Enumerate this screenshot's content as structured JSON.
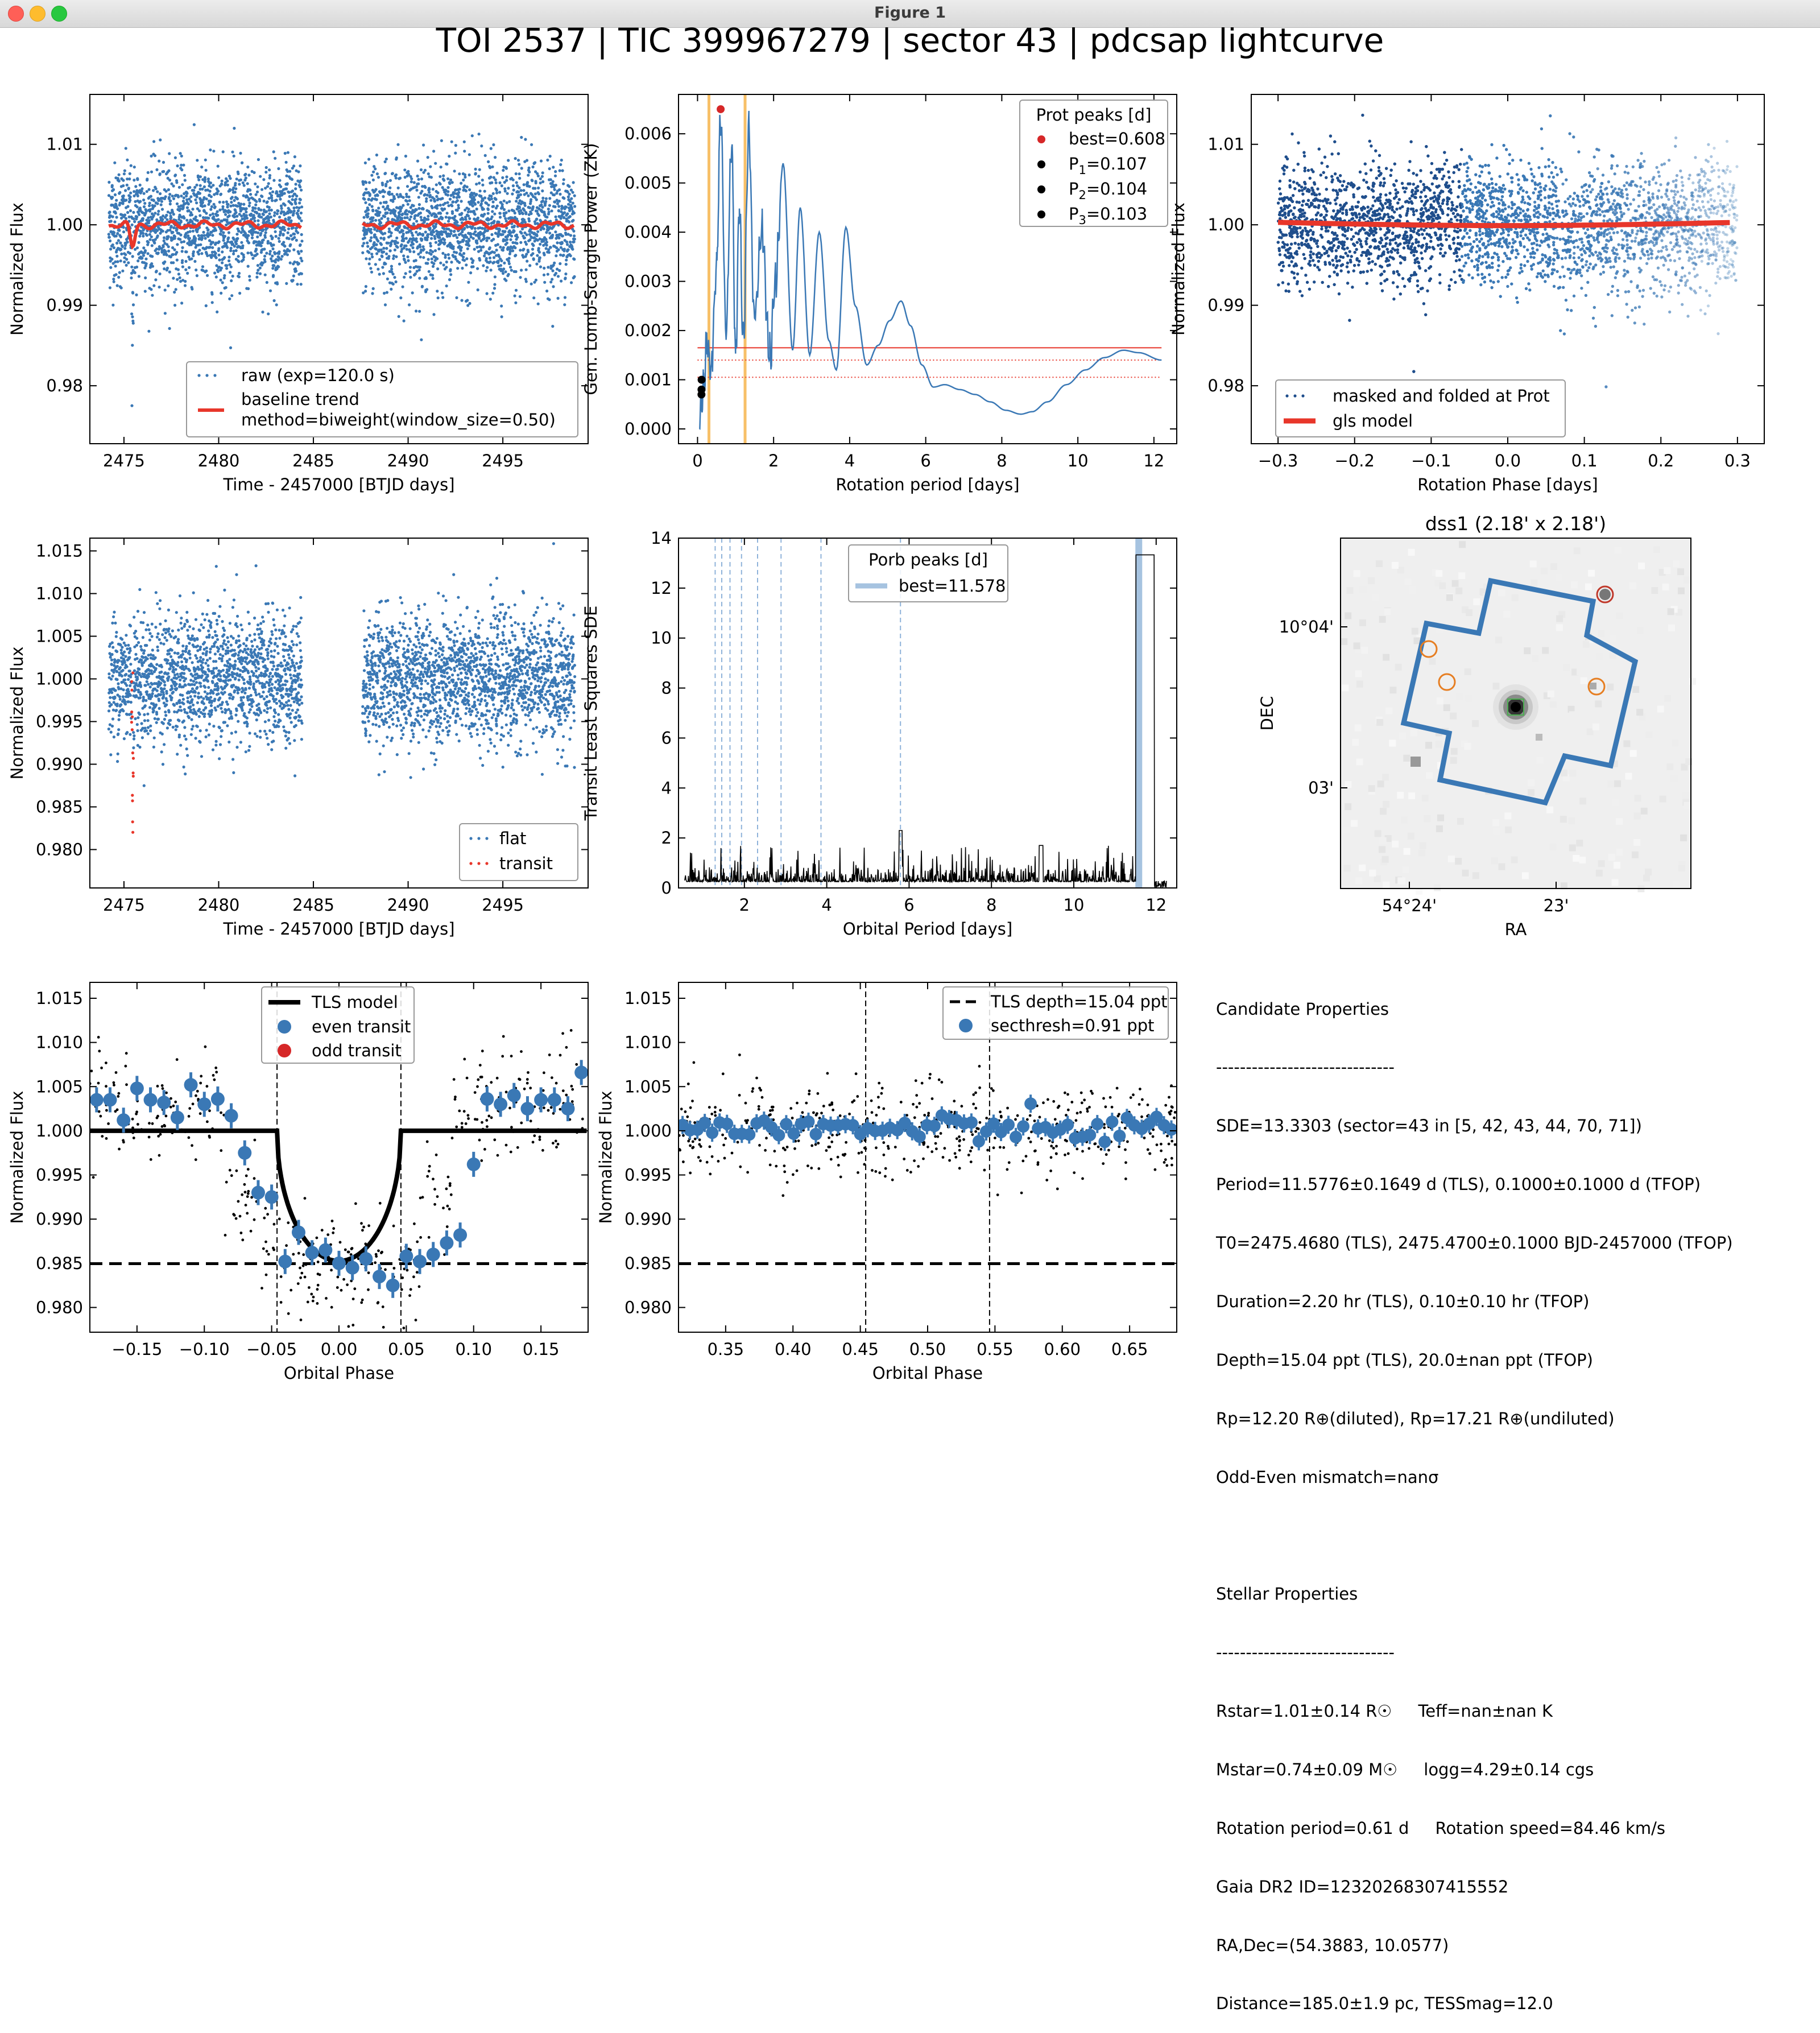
{
  "window": {
    "title": "Figure 1",
    "colors": {
      "close": "#ff5f57",
      "minimize": "#febc2e",
      "zoom": "#28c840"
    }
  },
  "figure_title": "TOI 2537 | TIC 399967279 | sector 43 | pdcsap lightcurve",
  "chart_data": [
    {
      "id": "raw",
      "type": "scatter",
      "xlabel": "Time - 2457000 [BTJD days]",
      "ylabel": "Normalized Flux",
      "xlim": [
        2473.2,
        2499.5
      ],
      "ylim": [
        0.9728,
        1.0162
      ],
      "xticks": [
        2475,
        2480,
        2485,
        2490,
        2495
      ],
      "xtick_labels": [
        "2475",
        "2480",
        "2485",
        "2490",
        "2495"
      ],
      "yticks": [
        0.98,
        0.99,
        1.0,
        1.01
      ],
      "ytick_labels": [
        "0.98",
        "0.99",
        "1.00",
        "1.01"
      ],
      "segments": [
        [
          2474.2,
          2484.4
        ],
        [
          2487.6,
          2498.8
        ]
      ],
      "scatter_sigma": 0.0038,
      "dip": {
        "center": 2475.45,
        "halfwidth": 0.05,
        "depth": 0.015
      },
      "series": [
        {
          "name": "raw (exp=120.0 s)",
          "color": "#3a78b5",
          "style": "points"
        },
        {
          "name": "baseline trend\nmethod=biweight(window_size=0.50)",
          "color": "#e8362a",
          "style": "line"
        }
      ],
      "legend": "lower-right"
    },
    {
      "id": "gls",
      "type": "line",
      "xlabel": "Rotation period [days]",
      "ylabel": "Gen. Lomb-Scargle Power (ZK)",
      "xlim": [
        -0.5,
        12.6
      ],
      "ylim": [
        -0.0003,
        0.0068
      ],
      "xticks": [
        0,
        2,
        4,
        6,
        8,
        10,
        12
      ],
      "xtick_labels": [
        "0",
        "2",
        "4",
        "6",
        "8",
        "10",
        "12"
      ],
      "yticks": [
        0,
        0.001,
        0.002,
        0.003,
        0.004,
        0.005,
        0.006
      ],
      "ytick_labels": [
        "0.000",
        "0.001",
        "0.002",
        "0.003",
        "0.004",
        "0.005",
        "0.006"
      ],
      "curve": {
        "x": [
          0.05,
          0.15,
          0.25,
          0.35,
          0.5,
          0.608,
          0.75,
          0.9,
          1.0,
          1.1,
          1.2,
          1.35,
          1.5,
          1.7,
          1.9,
          2.05,
          2.25,
          2.5,
          2.7,
          2.95,
          3.2,
          3.45,
          3.65,
          3.9,
          4.15,
          4.45,
          4.75,
          5.05,
          5.35,
          5.6,
          5.9,
          6.2,
          6.5,
          6.9,
          7.3,
          7.7,
          8.1,
          8.5,
          8.8,
          9.2,
          9.7,
          10.2,
          10.7,
          11.2,
          11.6,
          12.2
        ],
        "y": [
          0.0002,
          0.0008,
          0.0018,
          0.0012,
          0.0033,
          0.0064,
          0.002,
          0.0058,
          0.0015,
          0.0045,
          0.0018,
          0.006,
          0.0022,
          0.004,
          0.0014,
          0.003,
          0.0054,
          0.0016,
          0.0045,
          0.0015,
          0.004,
          0.0018,
          0.0012,
          0.0041,
          0.0025,
          0.0013,
          0.0017,
          0.0022,
          0.0026,
          0.0021,
          0.0013,
          0.00085,
          0.0009,
          0.0008,
          0.0007,
          0.00055,
          0.00038,
          0.0003,
          0.00035,
          0.00055,
          0.0009,
          0.0012,
          0.00145,
          0.0016,
          0.00155,
          0.0014
        ]
      },
      "fap_lines": [
        0.00165,
        0.0014,
        0.00105
      ],
      "shaded_periods": [
        0.3,
        1.25
      ],
      "peaks": [
        {
          "label": "best=0.608",
          "x": 0.608,
          "y": 0.0065,
          "color": "#d62728"
        },
        {
          "label": "P",
          "sub": "1",
          "val": "=0.107",
          "x": 0.107,
          "y": 0.001,
          "color": "#000000"
        },
        {
          "label": "P",
          "sub": "2",
          "val": "=0.104",
          "x": 0.104,
          "y": 0.0008,
          "color": "#000000"
        },
        {
          "label": "P",
          "sub": "3",
          "val": "=0.103",
          "x": 0.103,
          "y": 0.0007,
          "color": "#000000"
        }
      ],
      "legend_title": "Prot peaks [d]",
      "legend": "top-right"
    },
    {
      "id": "folded_rot",
      "type": "scatter",
      "xlabel": "Rotation Phase [days]",
      "ylabel": "Normalized Flux",
      "xlim": [
        -0.335,
        0.335
      ],
      "ylim": [
        0.9728,
        1.0162
      ],
      "xticks": [
        -0.3,
        -0.2,
        -0.1,
        0.0,
        0.1,
        0.2,
        0.3
      ],
      "xtick_labels": [
        "−0.3",
        "−0.2",
        "−0.1",
        "0.0",
        "0.1",
        "0.2",
        "0.3"
      ],
      "yticks": [
        0.98,
        0.99,
        1.0,
        1.01
      ],
      "ytick_labels": [
        "0.98",
        "0.99",
        "1.00",
        "1.01"
      ],
      "series": [
        {
          "name": "masked and folded at Prot",
          "color": "#1f4e8c",
          "style": "points"
        },
        {
          "name": "gls model",
          "color": "#e8362a",
          "style": "line"
        }
      ],
      "legend": "lower-left"
    },
    {
      "id": "flat",
      "type": "scatter",
      "xlabel": "Time - 2457000 [BTJD days]",
      "ylabel": "Normalized Flux",
      "xlim": [
        2473.2,
        2499.5
      ],
      "ylim": [
        0.9755,
        1.0165
      ],
      "xticks": [
        2475,
        2480,
        2485,
        2490,
        2495
      ],
      "xtick_labels": [
        "2475",
        "2480",
        "2485",
        "2490",
        "2495"
      ],
      "yticks": [
        0.98,
        0.985,
        0.99,
        0.995,
        1.0,
        1.005,
        1.01,
        1.015
      ],
      "ytick_labels": [
        "0.980",
        "0.985",
        "0.990",
        "0.995",
        "1.000",
        "1.005",
        "1.010",
        "1.015"
      ],
      "series": [
        {
          "name": "flat",
          "color": "#3a78b5",
          "style": "points"
        },
        {
          "name": "transit",
          "color": "#e8362a",
          "style": "points"
        }
      ],
      "legend": "lower-right"
    },
    {
      "id": "tls",
      "type": "line",
      "xlabel": "Orbital Period [days]",
      "ylabel": "Transit Least Squares SDE",
      "xlim": [
        0.4,
        12.5
      ],
      "ylim": [
        0,
        14
      ],
      "xticks": [
        2,
        4,
        6,
        8,
        10,
        12
      ],
      "xtick_labels": [
        "2",
        "4",
        "6",
        "8",
        "10",
        "12"
      ],
      "yticks": [
        0,
        2,
        4,
        6,
        8,
        10,
        12,
        14
      ],
      "ytick_labels": [
        "0",
        "2",
        "4",
        "6",
        "8",
        "10",
        "12",
        "14"
      ],
      "best_period": 11.578,
      "best_sde": 13.33,
      "harmonics": [
        1.29,
        1.45,
        1.65,
        1.93,
        2.32,
        2.89,
        3.86,
        5.79
      ],
      "legend_title": "Porb peaks [d]",
      "series": [
        {
          "name": "best=11.578",
          "color": "#a6c3e0"
        }
      ],
      "legend": "top-center"
    },
    {
      "id": "dss",
      "type": "image",
      "title": "dss1 (2.18' x 2.18')",
      "xlabel": "RA",
      "ylabel": "DEC",
      "xtick_labels": [
        "54°24'",
        "23'"
      ],
      "ytick_labels": [
        "10°04'",
        "03'"
      ]
    },
    {
      "id": "folded_transit",
      "type": "scatter",
      "xlabel": "Orbital Phase",
      "ylabel": "Normalized Flux",
      "xlim": [
        -0.185,
        0.185
      ],
      "ylim": [
        0.9772,
        1.0168
      ],
      "xticks": [
        -0.15,
        -0.1,
        -0.05,
        0.0,
        0.05,
        0.1,
        0.15
      ],
      "xtick_labels": [
        "−0.15",
        "−0.10",
        "−0.05",
        "0.00",
        "0.05",
        "0.10",
        "0.15"
      ],
      "yticks": [
        0.98,
        0.985,
        0.99,
        0.995,
        1.0,
        1.005,
        1.01,
        1.015
      ],
      "ytick_labels": [
        "0.980",
        "0.985",
        "0.990",
        "0.995",
        "1.000",
        "1.005",
        "1.010",
        "1.015"
      ],
      "binned": {
        "x": [
          -0.18,
          -0.17,
          -0.16,
          -0.15,
          -0.14,
          -0.13,
          -0.12,
          -0.11,
          -0.1,
          -0.09,
          -0.08,
          -0.07,
          -0.06,
          -0.05,
          -0.04,
          -0.03,
          -0.02,
          -0.01,
          0.0,
          0.01,
          0.02,
          0.03,
          0.04,
          0.05,
          0.06,
          0.07,
          0.08,
          0.09,
          0.1,
          0.11,
          0.12,
          0.13,
          0.14,
          0.15,
          0.16,
          0.17,
          0.18
        ],
        "y": [
          1.0035,
          1.0035,
          1.0012,
          1.0048,
          1.0035,
          1.0032,
          1.0015,
          1.0052,
          1.003,
          1.0036,
          1.0017,
          0.9975,
          0.993,
          0.9925,
          0.9852,
          0.9885,
          0.9862,
          0.9865,
          0.985,
          0.9845,
          0.9855,
          0.9835,
          0.9825,
          0.9858,
          0.9852,
          0.986,
          0.9873,
          0.9882,
          0.9962,
          1.0036,
          1.003,
          1.004,
          1.0025,
          1.0035,
          1.0035,
          1.0025,
          1.0066
        ]
      },
      "model": {
        "depth": 0.01504,
        "t14": 0.046
      },
      "depth_line": 0.98496,
      "vlines": [
        -0.046,
        0.046
      ],
      "series": [
        {
          "name": "TLS model",
          "color": "#000000",
          "style": "line"
        },
        {
          "name": "even transit",
          "color": "#3a78b5",
          "style": "marker"
        },
        {
          "name": "odd transit",
          "color": "#d62728",
          "style": "marker"
        }
      ],
      "legend": "top-center"
    },
    {
      "id": "secondary",
      "type": "scatter",
      "xlabel": "Orbital Phase",
      "ylabel": "Normalized Flux",
      "xlim": [
        0.315,
        0.685
      ],
      "ylim": [
        0.9772,
        1.0168
      ],
      "xticks": [
        0.35,
        0.4,
        0.45,
        0.5,
        0.55,
        0.6,
        0.65
      ],
      "xtick_labels": [
        "0.35",
        "0.40",
        "0.45",
        "0.50",
        "0.55",
        "0.60",
        "0.65"
      ],
      "yticks": [
        0.98,
        0.985,
        0.99,
        0.995,
        1.0,
        1.005,
        1.01,
        1.015
      ],
      "ytick_labels": [
        "0.980",
        "0.985",
        "0.990",
        "0.995",
        "1.000",
        "1.005",
        "1.010",
        "1.015"
      ],
      "depth_line": 0.98496,
      "vlines": [
        0.454,
        0.546
      ],
      "series": [
        {
          "name": "TLS depth=15.04 ppt",
          "color": "#000000",
          "style": "dashed"
        },
        {
          "name": "secthresh=0.91 ppt",
          "color": "#3a78b5",
          "style": "marker"
        }
      ],
      "legend": "top-right"
    }
  ],
  "candidate": {
    "heading": "Candidate Properties",
    "rule": "------------------------------",
    "lines": [
      "SDE=13.3303 (sector=43 in [5, 42, 43, 44, 70, 71])",
      "Period=11.5776±0.1649 d (TLS), 0.1000±0.1000 d (TFOP)",
      "T0=2475.4680 (TLS), 2475.4700±0.1000 BJD-2457000 (TFOP)",
      "Duration=2.20 hr (TLS), 0.10±0.10 hr (TFOP)",
      "Depth=15.04 ppt (TLS), 20.0±nan ppt (TFOP)",
      "Rp=12.20 R⊕(diluted), Rp=17.21 R⊕(undiluted)",
      "Odd-Even mismatch=nanσ"
    ]
  },
  "stellar": {
    "heading": "Stellar Properties",
    "rule": "------------------------------",
    "lines": [
      "Rstar=1.01±0.14 R☉     Teff=nan±nan K",
      "Mstar=0.74±0.09 M☉     logg=4.29±0.14 cgs",
      "Rotation period=0.61 d     Rotation speed=84.46 km/s",
      "Gaia DR2 ID=1232026830741555​2",
      "RA,Dec=(54.3883, 10.0577)",
      "Distance=185.0±1.9 pc, TESSmag=12.0"
    ]
  }
}
